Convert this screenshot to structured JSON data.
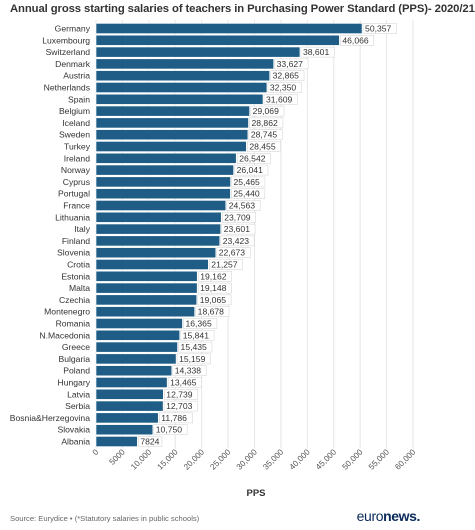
{
  "title": "Annual gross starting salaries of teachers in Purchasing Power Standard (PPS)- 2020/21",
  "source": "Source: Eurydice • (*Statutory salaries in public schools)",
  "brand": {
    "part1": "euro",
    "part2": "news."
  },
  "colors": {
    "bar": "#1f5d86",
    "bar_outline": "#ffffff",
    "grid": "#e6e6e6",
    "label_box": "#ffffff"
  },
  "chart_data": {
    "type": "bar",
    "orientation": "horizontal",
    "title": "Annual gross starting salaries of teachers in Purchasing Power Standard (PPS)- 2020/21",
    "xlabel": "PPS",
    "ylabel": "",
    "xlim": [
      0,
      60000
    ],
    "ticks": [
      0,
      5000,
      10000,
      15000,
      20000,
      25000,
      30000,
      35000,
      40000,
      45000,
      50000,
      55000,
      60000
    ],
    "tick_labels": [
      "0",
      "5000",
      "10,000",
      "15,000",
      "20,000",
      "25,000",
      "30,000",
      "35,000",
      "40,000",
      "45,000",
      "50,000",
      "55,000",
      "60,000"
    ],
    "grid": true,
    "categories": [
      "Germany",
      "Luxembourg",
      "Switzerland",
      "Denmark",
      "Austria",
      "Netherlands",
      "Spain",
      "Belgium",
      "Iceland",
      "Sweden",
      "Turkey",
      "Ireland",
      "Norway",
      "Cyprus",
      "Portugal",
      "France",
      "Lithuania",
      "Italy",
      "Finland",
      "Slovenia",
      "Crotia",
      "Estonia",
      "Malta",
      "Czechia",
      "Montenegro",
      "Romania",
      "N.Macedonia",
      "Greece",
      "Bulgaria",
      "Poland",
      "Hungary",
      "Latvia",
      "Serbia",
      "Bosnia&Herzegovina",
      "Slovakia",
      "Albania"
    ],
    "values": [
      50357,
      46066,
      38601,
      33627,
      32865,
      32350,
      31609,
      29069,
      28862,
      28745,
      28455,
      26542,
      26041,
      25465,
      25440,
      24563,
      23709,
      23601,
      23423,
      22673,
      21257,
      19162,
      19148,
      19065,
      18678,
      16365,
      15841,
      15435,
      15159,
      14338,
      13465,
      12739,
      12703,
      11786,
      10750,
      7824
    ],
    "value_labels": [
      "50,357",
      "46,066",
      "38,601",
      "33,627",
      "32,865",
      "32,350",
      "31,609",
      "29,069",
      "28,862",
      "28,745",
      "28,455",
      "26,542",
      "26,041",
      "25,465",
      "25,440",
      "24,563",
      "23,709",
      "23,601",
      "23,423",
      "22,673",
      "21,257",
      "19,162",
      "19,148",
      "19,065",
      "18,678",
      "16,365",
      "15,841",
      "15,435",
      "15,159",
      "14,338",
      "13,465",
      "12,739",
      "12,703",
      "11,786",
      "10,750",
      "7824"
    ]
  }
}
